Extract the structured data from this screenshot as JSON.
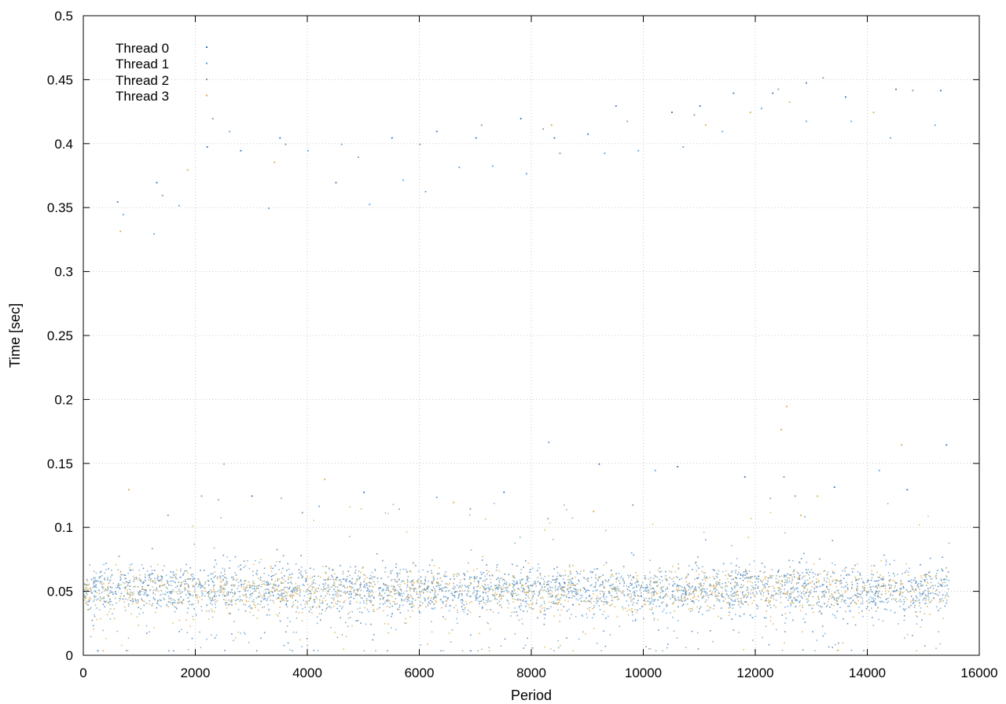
{
  "chart_data": {
    "type": "scatter",
    "title": "",
    "xlabel": "Period",
    "ylabel": "Time [sec]",
    "xlim": [
      0,
      16000
    ],
    "ylim": [
      0,
      0.5
    ],
    "x_ticks": [
      0,
      2000,
      4000,
      6000,
      8000,
      10000,
      12000,
      14000,
      16000
    ],
    "x_tick_labels": [
      "0",
      "2000",
      "4000",
      "6000",
      "8000",
      "10000",
      "12000",
      "14000",
      "16000"
    ],
    "y_ticks": [
      0,
      0.05,
      0.1,
      0.15,
      0.2,
      0.25,
      0.3,
      0.35,
      0.4,
      0.45,
      0.5
    ],
    "y_tick_labels": [
      "0",
      "0.05",
      "0.1",
      "0.15",
      "0.2",
      "0.25",
      "0.3",
      "0.35",
      "0.4",
      "0.45",
      "0.5"
    ],
    "grid": true,
    "legend_position": "top-left",
    "x_data_range": [
      0,
      15450
    ],
    "series": [
      {
        "name": "Thread 0",
        "color": "#2f6fb5",
        "typical_range": [
          0.03,
          0.075
        ],
        "points": [
          [
            600,
            0.355
          ],
          [
            1300,
            0.37
          ],
          [
            2200,
            0.398
          ],
          [
            2800,
            0.395
          ],
          [
            3500,
            0.405
          ],
          [
            4500,
            0.37
          ],
          [
            5500,
            0.405
          ],
          [
            6300,
            0.41
          ],
          [
            7000,
            0.405
          ],
          [
            7800,
            0.42
          ],
          [
            8400,
            0.405
          ],
          [
            9000,
            0.408
          ],
          [
            9500,
            0.43
          ],
          [
            10500,
            0.425
          ],
          [
            11000,
            0.43
          ],
          [
            11600,
            0.44
          ],
          [
            12300,
            0.44
          ],
          [
            12900,
            0.448
          ],
          [
            13600,
            0.437
          ],
          [
            14500,
            0.443
          ],
          [
            15300,
            0.442
          ],
          [
            3000,
            0.125
          ],
          [
            5000,
            0.128
          ],
          [
            7500,
            0.128
          ],
          [
            9200,
            0.15
          ],
          [
            10600,
            0.148
          ],
          [
            11800,
            0.14
          ],
          [
            13400,
            0.132
          ],
          [
            14700,
            0.13
          ],
          [
            15400,
            0.165
          ]
        ]
      },
      {
        "name": "Thread 1",
        "color": "#5aa0dc",
        "typical_range": [
          0.028,
          0.072
        ],
        "points": [
          [
            700,
            0.345
          ],
          [
            1250,
            0.33
          ],
          [
            1700,
            0.352
          ],
          [
            2600,
            0.41
          ],
          [
            3300,
            0.35
          ],
          [
            4000,
            0.395
          ],
          [
            4600,
            0.4
          ],
          [
            5100,
            0.353
          ],
          [
            5700,
            0.372
          ],
          [
            6100,
            0.363
          ],
          [
            6700,
            0.382
          ],
          [
            7300,
            0.383
          ],
          [
            7900,
            0.377
          ],
          [
            8500,
            0.393
          ],
          [
            9300,
            0.393
          ],
          [
            9900,
            0.395
          ],
          [
            10700,
            0.398
          ],
          [
            11400,
            0.41
          ],
          [
            12100,
            0.428
          ],
          [
            12900,
            0.418
          ],
          [
            13700,
            0.418
          ],
          [
            14400,
            0.405
          ],
          [
            15200,
            0.415
          ],
          [
            2100,
            0.125
          ],
          [
            4200,
            0.117
          ],
          [
            6300,
            0.124
          ],
          [
            8300,
            0.167
          ],
          [
            10200,
            0.145
          ],
          [
            12500,
            0.14
          ],
          [
            14200,
            0.145
          ]
        ]
      },
      {
        "name": "Thread 2",
        "color": "#7a9a9a",
        "typical_range": [
          0.035,
          0.07
        ],
        "points": [
          [
            1400,
            0.36
          ],
          [
            2300,
            0.42
          ],
          [
            3600,
            0.4
          ],
          [
            4900,
            0.39
          ],
          [
            6000,
            0.4
          ],
          [
            7100,
            0.415
          ],
          [
            8200,
            0.412
          ],
          [
            9700,
            0.418
          ],
          [
            10900,
            0.423
          ],
          [
            12400,
            0.443
          ],
          [
            13200,
            0.452
          ],
          [
            14800,
            0.442
          ],
          [
            1500,
            0.11
          ],
          [
            3900,
            0.112
          ],
          [
            6900,
            0.115
          ],
          [
            9800,
            0.118
          ],
          [
            12700,
            0.125
          ]
        ]
      },
      {
        "name": "Thread 3",
        "color": "#dba83c",
        "typical_range": [
          0.03,
          0.07
        ],
        "points": [
          [
            650,
            0.332
          ],
          [
            1850,
            0.38
          ],
          [
            3400,
            0.386
          ],
          [
            8350,
            0.415
          ],
          [
            11100,
            0.415
          ],
          [
            11900,
            0.425
          ],
          [
            12600,
            0.433
          ],
          [
            14100,
            0.425
          ],
          [
            800,
            0.13
          ],
          [
            2500,
            0.15
          ],
          [
            4300,
            0.138
          ],
          [
            6600,
            0.12
          ],
          [
            9100,
            0.113
          ],
          [
            12450,
            0.177
          ],
          [
            12550,
            0.195
          ],
          [
            13100,
            0.125
          ],
          [
            14600,
            0.165
          ],
          [
            12800,
            0.11
          ]
        ]
      }
    ]
  }
}
